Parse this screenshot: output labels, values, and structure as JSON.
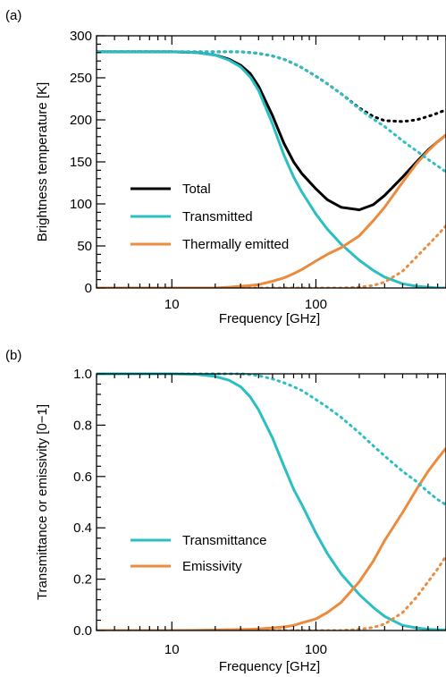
{
  "chart_data": [
    {
      "type": "line",
      "panel_label": "(a)",
      "xlabel": "Frequency [GHz]",
      "ylabel": "Brightness temperature [K]",
      "xscale": "log",
      "xlim": [
        3,
        800
      ],
      "ylim": [
        0,
        300
      ],
      "xticks": [
        {
          "value": 10,
          "label": "10"
        },
        {
          "value": 100,
          "label": "100"
        }
      ],
      "yticks": [
        {
          "value": 0,
          "label": "0"
        },
        {
          "value": 50,
          "label": "50"
        },
        {
          "value": 100,
          "label": "100"
        },
        {
          "value": 150,
          "label": "150"
        },
        {
          "value": 200,
          "label": "200"
        },
        {
          "value": 250,
          "label": "250"
        },
        {
          "value": 300,
          "label": "300"
        }
      ],
      "legend_position": "lower-left",
      "x": [
        3,
        5,
        10,
        15,
        20,
        25,
        30,
        35,
        40,
        50,
        60,
        70,
        80,
        100,
        120,
        150,
        200,
        250,
        300,
        400,
        500,
        600,
        700,
        800
      ],
      "series": [
        {
          "name": "Total",
          "color": "#000000",
          "style": "solid",
          "values": [
            281,
            281,
            281,
            280,
            277,
            272,
            265,
            255,
            240,
            205,
            172,
            150,
            136,
            118,
            105,
            96,
            93,
            99,
            110,
            132,
            150,
            164,
            174,
            182
          ]
        },
        {
          "name": "Transmitted",
          "color": "#2bbfc3",
          "style": "solid",
          "values": [
            281,
            281,
            281,
            280,
            277,
            271,
            263,
            251,
            235,
            195,
            158,
            132,
            114,
            88,
            70,
            52,
            33,
            21,
            13,
            5,
            2,
            1,
            0,
            0
          ]
        },
        {
          "name": "Thermally emitted",
          "color": "#ec8b3c",
          "style": "solid",
          "values": [
            0,
            0,
            0,
            0,
            0,
            1,
            2,
            3,
            4,
            8,
            12,
            17,
            22,
            32,
            40,
            48,
            62,
            80,
            96,
            126,
            148,
            163,
            174,
            182
          ]
        },
        {
          "color": "#000000",
          "style": "dotted",
          "values": [
            281,
            281,
            281,
            281,
            281,
            281,
            281,
            280,
            279,
            276,
            272,
            267,
            262,
            252,
            243,
            231,
            214,
            204,
            199,
            198,
            200,
            204,
            208,
            212
          ]
        },
        {
          "color": "#2bbfc3",
          "style": "dotted",
          "values": [
            281,
            281,
            281,
            281,
            281,
            281,
            281,
            280,
            279,
            276,
            272,
            267,
            262,
            252,
            243,
            231,
            213,
            201,
            192,
            175,
            163,
            153,
            145,
            138
          ]
        },
        {
          "color": "#ec8b3c",
          "style": "dotted",
          "values": [
            0,
            0,
            0,
            0,
            0,
            0,
            0,
            0,
            0,
            0,
            0,
            0,
            0,
            0,
            0,
            0,
            1,
            3,
            7,
            20,
            37,
            51,
            63,
            74
          ]
        }
      ]
    },
    {
      "type": "line",
      "panel_label": "(b)",
      "xlabel": "Frequency [GHz]",
      "ylabel": "Transmittance or emissivity [0−1]",
      "xscale": "log",
      "xlim": [
        3,
        800
      ],
      "ylim": [
        0,
        1
      ],
      "xticks": [
        {
          "value": 10,
          "label": "10"
        },
        {
          "value": 100,
          "label": "100"
        }
      ],
      "yticks": [
        {
          "value": 0,
          "label": "0.0"
        },
        {
          "value": 0.2,
          "label": "0.2"
        },
        {
          "value": 0.4,
          "label": "0.4"
        },
        {
          "value": 0.6,
          "label": "0.6"
        },
        {
          "value": 0.8,
          "label": "0.8"
        },
        {
          "value": 1.0,
          "label": "1.0"
        }
      ],
      "legend_position": "lower-left",
      "x": [
        3,
        5,
        10,
        15,
        20,
        25,
        30,
        35,
        40,
        50,
        60,
        70,
        80,
        100,
        120,
        150,
        200,
        250,
        300,
        400,
        500,
        600,
        700,
        800
      ],
      "series": [
        {
          "name": "Transmittance",
          "color": "#2bbfc3",
          "style": "solid",
          "values": [
            1.0,
            1.0,
            1.0,
            0.998,
            0.99,
            0.975,
            0.95,
            0.91,
            0.86,
            0.75,
            0.64,
            0.55,
            0.49,
            0.38,
            0.3,
            0.22,
            0.14,
            0.09,
            0.055,
            0.02,
            0.01,
            0.005,
            0.003,
            0.002
          ]
        },
        {
          "name": "Emissivity",
          "color": "#ec8b3c",
          "style": "solid",
          "values": [
            0.0,
            0.0,
            0.0,
            0.001,
            0.002,
            0.003,
            0.004,
            0.005,
            0.006,
            0.01,
            0.014,
            0.02,
            0.03,
            0.045,
            0.07,
            0.11,
            0.19,
            0.27,
            0.35,
            0.46,
            0.55,
            0.62,
            0.67,
            0.71
          ]
        },
        {
          "color": "#2bbfc3",
          "style": "dotted",
          "values": [
            1.0,
            1.0,
            1.0,
            1.0,
            1.0,
            1.0,
            1.0,
            0.997,
            0.993,
            0.98,
            0.965,
            0.95,
            0.935,
            0.9,
            0.87,
            0.83,
            0.77,
            0.72,
            0.68,
            0.62,
            0.58,
            0.54,
            0.51,
            0.49
          ]
        },
        {
          "color": "#ec8b3c",
          "style": "dotted",
          "values": [
            0,
            0,
            0,
            0,
            0,
            0,
            0,
            0,
            0,
            0,
            0,
            0,
            0,
            0,
            0,
            0,
            0.005,
            0.012,
            0.025,
            0.07,
            0.13,
            0.19,
            0.24,
            0.29
          ]
        }
      ]
    }
  ]
}
